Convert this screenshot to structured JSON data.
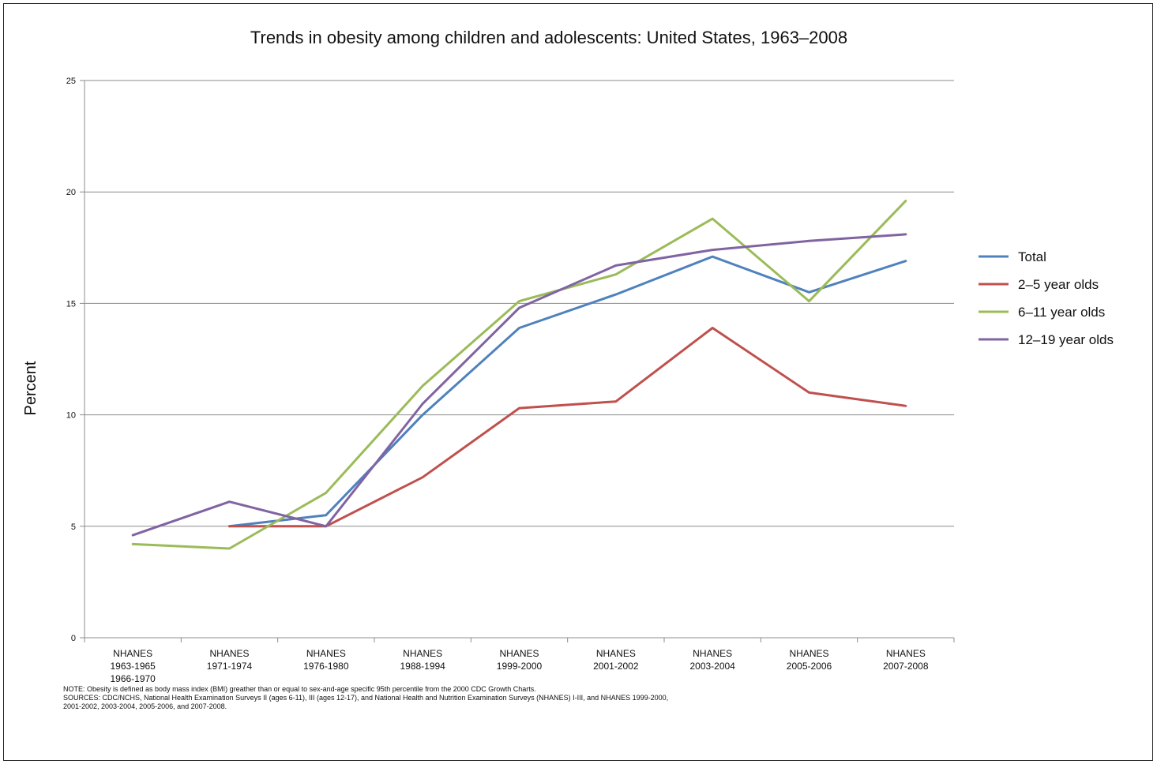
{
  "chart_data": {
    "type": "line",
    "title": "Trends in obesity among children and adolescents: United States, 1963–2008",
    "ylabel": "Percent",
    "xlabel": "",
    "ylim": [
      0,
      25
    ],
    "yticks": [
      0,
      5,
      10,
      15,
      20,
      25
    ],
    "grid": "horizontal",
    "legend_position": "right",
    "categories": [
      [
        "NHANES",
        "1963-1965",
        "1966-1970"
      ],
      [
        "NHANES",
        "1971-1974"
      ],
      [
        "NHANES",
        "1976-1980"
      ],
      [
        "NHANES",
        "1988-1994"
      ],
      [
        "NHANES",
        "1999-2000"
      ],
      [
        "NHANES",
        "2001-2002"
      ],
      [
        "NHANES",
        "2003-2004"
      ],
      [
        "NHANES",
        "2005-2006"
      ],
      [
        "NHANES",
        "2007-2008"
      ]
    ],
    "series": [
      {
        "name": "Total",
        "color": "#4F81BD",
        "values": [
          null,
          5.0,
          5.5,
          10.0,
          13.9,
          15.4,
          17.1,
          15.5,
          16.9
        ]
      },
      {
        "name": "2–5 year olds",
        "color": "#C0504D",
        "values": [
          null,
          5.0,
          5.0,
          7.2,
          10.3,
          10.6,
          13.9,
          11.0,
          10.4
        ]
      },
      {
        "name": "6–11 year olds",
        "color": "#9BBB59",
        "values": [
          4.2,
          4.0,
          6.5,
          11.3,
          15.1,
          16.3,
          18.8,
          15.1,
          19.6
        ]
      },
      {
        "name": "12–19 year olds",
        "color": "#8064A2",
        "values": [
          4.6,
          6.1,
          5.0,
          10.5,
          14.8,
          16.7,
          17.4,
          17.8,
          18.1
        ]
      }
    ]
  },
  "notes": {
    "line1": "NOTE: Obesity is defined as body mass index (BMI) greather than or equal to sex-and-age specific 95th percentile from the 2000 CDC Growth Charts.",
    "line2": "SOURCES: CDC/NCHS, National Health Examination Surveys II (ages 6-11), III (ages 12-17), and National Health and Nutrition Examination Surveys (NHANES) I-III, and NHANES 1999-2000,",
    "line3": "2001-2002, 2003-2004, 2005-2006, and 2007-2008."
  }
}
